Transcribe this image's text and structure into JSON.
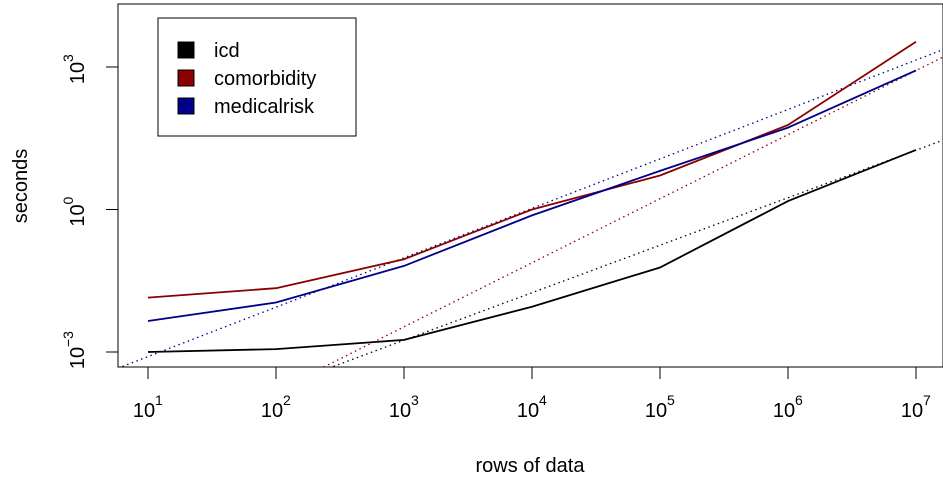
{
  "chart_data": {
    "type": "line",
    "title": "",
    "xlabel": "rows of data",
    "ylabel": "seconds",
    "x_scale": "log10",
    "y_scale": "log10",
    "x": [
      10,
      100,
      1000,
      10000,
      100000,
      1000000,
      10000000
    ],
    "xlim": [
      10,
      10000000
    ],
    "ylim": [
      0.001,
      5000
    ],
    "x_ticks": [
      {
        "base": "10",
        "exp": "1"
      },
      {
        "base": "10",
        "exp": "2"
      },
      {
        "base": "10",
        "exp": "3"
      },
      {
        "base": "10",
        "exp": "4"
      },
      {
        "base": "10",
        "exp": "5"
      },
      {
        "base": "10",
        "exp": "6"
      },
      {
        "base": "10",
        "exp": "7"
      }
    ],
    "y_ticks": [
      {
        "value": 0.001,
        "base": "10",
        "exp": "−3"
      },
      {
        "value": 1,
        "base": "10",
        "exp": "0"
      },
      {
        "value": 1000,
        "base": "10",
        "exp": "3"
      }
    ],
    "grid": false,
    "legend_position": "top-left",
    "series": [
      {
        "name": "icd",
        "color": "#000000",
        "values": [
          0.001,
          0.00115,
          0.0018,
          0.009,
          0.06,
          1.5,
          18
        ],
        "fit_values": [
          1.77e-05,
          0.000177,
          0.00177,
          0.0177,
          0.177,
          1.77,
          17.7
        ]
      },
      {
        "name": "comorbidity",
        "color": "#8b0000",
        "values": [
          0.014,
          0.022,
          0.09,
          1.0,
          5.2,
          60.0,
          3400.0
        ],
        "fit_values": [
          6.8e-06,
          0.000152,
          0.0034,
          0.075,
          1.7,
          37.5,
          840.0
        ]
      },
      {
        "name": "medicalrisk",
        "color": "#00008b",
        "values": [
          0.0045,
          0.011,
          0.065,
          0.75,
          6.5,
          53.0,
          850.0
        ],
        "fit_values": [
          0.0008,
          0.009,
          0.098,
          1.07,
          11.7,
          128.0,
          1400.0
        ]
      }
    ]
  }
}
